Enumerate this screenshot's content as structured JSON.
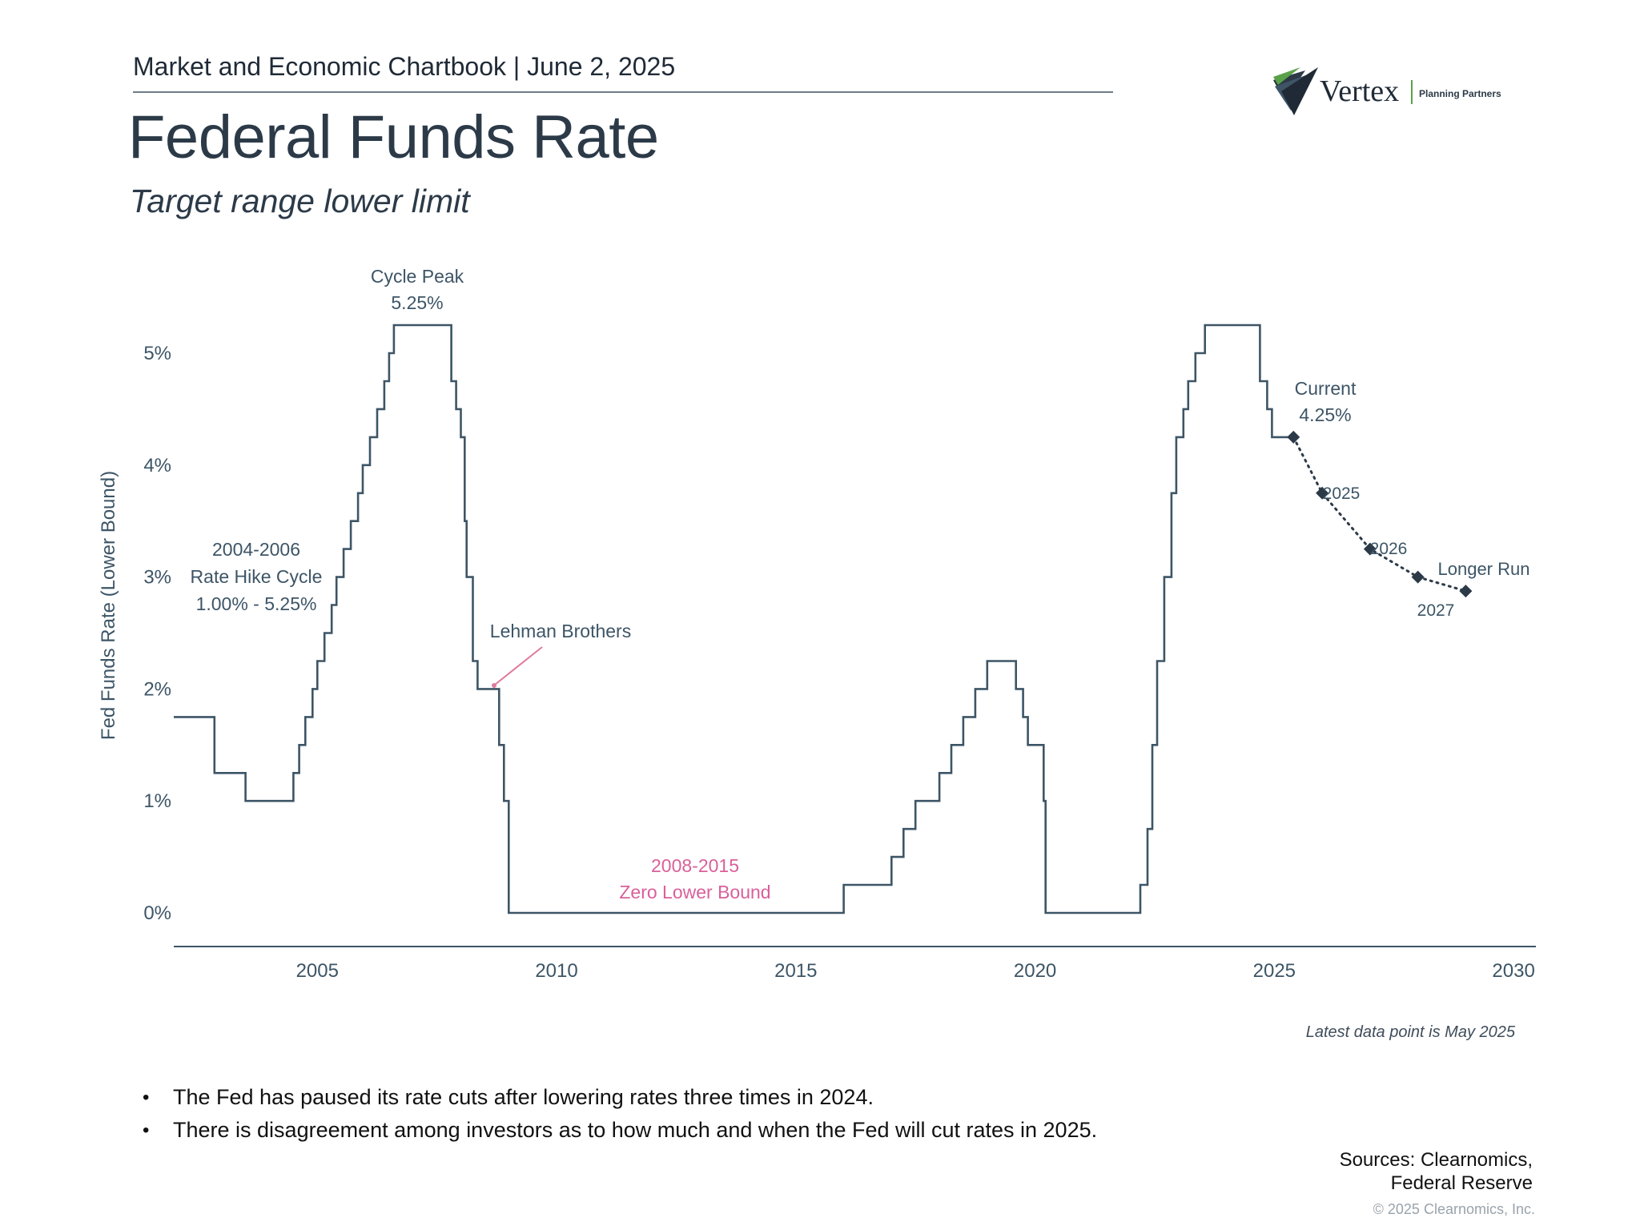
{
  "header": {
    "line": "Market and Economic Chartbook | June 2, 2025",
    "title": "Federal Funds Rate",
    "subtitle": "Target range lower limit"
  },
  "logo": {
    "name": "Vertex",
    "tagline": "Planning Partners",
    "accent_color": "#5aa14a"
  },
  "chart_data": {
    "type": "line",
    "title": "Federal Funds Rate",
    "subtitle": "Target range lower limit",
    "xlabel": "",
    "ylabel": "Fed Funds Rate (Lower Bound)",
    "xlim": [
      2002,
      2030.5
    ],
    "ylim": [
      0,
      5.5
    ],
    "x_ticks": [
      2005,
      2010,
      2015,
      2020,
      2025,
      2030
    ],
    "x_tick_labels": [
      "2005",
      "2010",
      "2015",
      "2020",
      "2025",
      "2030"
    ],
    "y_ticks": [
      0,
      1,
      2,
      3,
      4,
      5
    ],
    "y_tick_labels": [
      "0%",
      "1%",
      "2%",
      "3%",
      "4%",
      "5%"
    ],
    "grid": false,
    "line_color": "#3d5566",
    "series": [
      {
        "name": "Fed Funds Rate (lower bound)",
        "style": "step",
        "points": [
          [
            2002.0,
            1.75
          ],
          [
            2002.85,
            1.75
          ],
          [
            2002.85,
            1.25
          ],
          [
            2003.5,
            1.25
          ],
          [
            2003.5,
            1.0
          ],
          [
            2004.5,
            1.0
          ],
          [
            2004.5,
            1.25
          ],
          [
            2004.62,
            1.25
          ],
          [
            2004.62,
            1.5
          ],
          [
            2004.75,
            1.5
          ],
          [
            2004.75,
            1.75
          ],
          [
            2004.9,
            1.75
          ],
          [
            2004.9,
            2.0
          ],
          [
            2005.0,
            2.0
          ],
          [
            2005.0,
            2.25
          ],
          [
            2005.15,
            2.25
          ],
          [
            2005.15,
            2.5
          ],
          [
            2005.3,
            2.5
          ],
          [
            2005.3,
            2.75
          ],
          [
            2005.4,
            2.75
          ],
          [
            2005.4,
            3.0
          ],
          [
            2005.55,
            3.0
          ],
          [
            2005.55,
            3.25
          ],
          [
            2005.7,
            3.25
          ],
          [
            2005.7,
            3.5
          ],
          [
            2005.85,
            3.5
          ],
          [
            2005.85,
            3.75
          ],
          [
            2005.95,
            3.75
          ],
          [
            2005.95,
            4.0
          ],
          [
            2006.1,
            4.0
          ],
          [
            2006.1,
            4.25
          ],
          [
            2006.25,
            4.25
          ],
          [
            2006.25,
            4.5
          ],
          [
            2006.4,
            4.5
          ],
          [
            2006.4,
            4.75
          ],
          [
            2006.5,
            4.75
          ],
          [
            2006.5,
            5.0
          ],
          [
            2006.6,
            5.0
          ],
          [
            2006.6,
            5.25
          ],
          [
            2007.8,
            5.25
          ],
          [
            2007.8,
            4.75
          ],
          [
            2007.9,
            4.75
          ],
          [
            2007.9,
            4.5
          ],
          [
            2008.0,
            4.5
          ],
          [
            2008.0,
            4.25
          ],
          [
            2008.08,
            4.25
          ],
          [
            2008.08,
            3.5
          ],
          [
            2008.12,
            3.5
          ],
          [
            2008.12,
            3.0
          ],
          [
            2008.25,
            3.0
          ],
          [
            2008.25,
            2.25
          ],
          [
            2008.35,
            2.25
          ],
          [
            2008.35,
            2.0
          ],
          [
            2008.8,
            2.0
          ],
          [
            2008.8,
            1.5
          ],
          [
            2008.9,
            1.5
          ],
          [
            2008.9,
            1.0
          ],
          [
            2009.0,
            1.0
          ],
          [
            2009.0,
            0.0
          ],
          [
            2016.0,
            0.0
          ],
          [
            2016.0,
            0.25
          ],
          [
            2017.0,
            0.25
          ],
          [
            2017.0,
            0.5
          ],
          [
            2017.25,
            0.5
          ],
          [
            2017.25,
            0.75
          ],
          [
            2017.5,
            0.75
          ],
          [
            2017.5,
            1.0
          ],
          [
            2018.0,
            1.0
          ],
          [
            2018.0,
            1.25
          ],
          [
            2018.25,
            1.25
          ],
          [
            2018.25,
            1.5
          ],
          [
            2018.5,
            1.5
          ],
          [
            2018.5,
            1.75
          ],
          [
            2018.75,
            1.75
          ],
          [
            2018.75,
            2.0
          ],
          [
            2019.0,
            2.0
          ],
          [
            2019.0,
            2.25
          ],
          [
            2019.6,
            2.25
          ],
          [
            2019.6,
            2.0
          ],
          [
            2019.75,
            2.0
          ],
          [
            2019.75,
            1.75
          ],
          [
            2019.85,
            1.75
          ],
          [
            2019.85,
            1.5
          ],
          [
            2020.18,
            1.5
          ],
          [
            2020.18,
            1.0
          ],
          [
            2020.22,
            1.0
          ],
          [
            2020.22,
            0.0
          ],
          [
            2022.2,
            0.0
          ],
          [
            2022.2,
            0.25
          ],
          [
            2022.35,
            0.25
          ],
          [
            2022.35,
            0.75
          ],
          [
            2022.45,
            0.75
          ],
          [
            2022.45,
            1.5
          ],
          [
            2022.55,
            1.5
          ],
          [
            2022.55,
            2.25
          ],
          [
            2022.7,
            2.25
          ],
          [
            2022.7,
            3.0
          ],
          [
            2022.85,
            3.0
          ],
          [
            2022.85,
            3.75
          ],
          [
            2022.95,
            3.75
          ],
          [
            2022.95,
            4.25
          ],
          [
            2023.1,
            4.25
          ],
          [
            2023.1,
            4.5
          ],
          [
            2023.2,
            4.5
          ],
          [
            2023.2,
            4.75
          ],
          [
            2023.35,
            4.75
          ],
          [
            2023.35,
            5.0
          ],
          [
            2023.55,
            5.0
          ],
          [
            2023.55,
            5.25
          ],
          [
            2024.7,
            5.25
          ],
          [
            2024.7,
            4.75
          ],
          [
            2024.85,
            4.75
          ],
          [
            2024.85,
            4.5
          ],
          [
            2024.95,
            4.5
          ],
          [
            2024.95,
            4.25
          ],
          [
            2025.4,
            4.25
          ]
        ]
      },
      {
        "name": "Projections",
        "style": "dotted",
        "points": [
          [
            2025.4,
            4.25
          ],
          [
            2026.0,
            3.75
          ],
          [
            2027.0,
            3.25
          ],
          [
            2028.0,
            3.0
          ],
          [
            2029.0,
            2.875
          ]
        ],
        "point_labels": [
          "Current 4.25%",
          "2025",
          "2026",
          "2027",
          "Longer Run"
        ]
      }
    ],
    "annotations": [
      {
        "lines": [
          "Cycle Peak",
          "5.25%"
        ],
        "color": "#3d5566"
      },
      {
        "lines": [
          "2004-2006",
          "Rate Hike Cycle",
          "1.00% - 5.25%"
        ],
        "color": "#3d5566"
      },
      {
        "lines": [
          "Lehman Brothers"
        ],
        "color": "#3d5566",
        "pointer_color": "#e07a9e"
      },
      {
        "lines": [
          "2008-2015",
          "Zero Lower Bound"
        ],
        "color": "#d9609a"
      },
      {
        "lines": [
          "Current",
          "4.25%"
        ],
        "color": "#3d5566"
      },
      {
        "lines": [
          "2025"
        ],
        "color": "#3d5566"
      },
      {
        "lines": [
          "2026"
        ],
        "color": "#3d5566"
      },
      {
        "lines": [
          "2027"
        ],
        "color": "#3d5566"
      },
      {
        "lines": [
          "Longer Run"
        ],
        "color": "#3d5566"
      }
    ]
  },
  "footnote": "Latest data point is May 2025",
  "bullets": [
    "The Fed has paused its rate cuts after lowering rates three times in 2024.",
    "There is disagreement among investors as to how much and when the Fed will cut rates in 2025."
  ],
  "sources": {
    "line1": "Sources: Clearnomics,",
    "line2": "Federal Reserve"
  },
  "copyright": "© 2025 Clearnomics, Inc."
}
